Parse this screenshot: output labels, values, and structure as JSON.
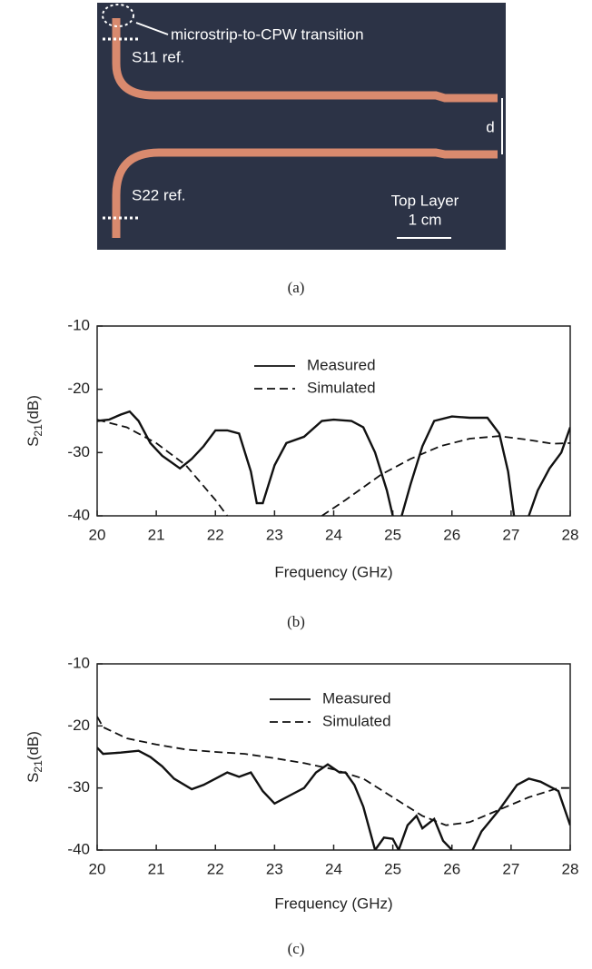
{
  "photo": {
    "annotation": "microstrip-to-CPW transition",
    "s11_label": "S11 ref.",
    "s22_label": "S22 ref.",
    "d_label": "d",
    "layer_label": "Top Layer",
    "scale_label": "1 cm",
    "caption": "(a)"
  },
  "chart_data": [
    {
      "type": "line",
      "caption": "(b)",
      "x_label": "Frequency (GHz)",
      "y_label": {
        "text": "S",
        "subscript": "21",
        "unit": "(dB)"
      },
      "xlim": [
        20,
        28
      ],
      "xticks": [
        20,
        21,
        22,
        23,
        24,
        25,
        26,
        27,
        28
      ],
      "ylim": [
        -40,
        -10
      ],
      "yticks": [
        -40,
        -30,
        -20,
        -10
      ],
      "series": [
        {
          "name": "Measured",
          "color": "#111111",
          "dash": "solid",
          "x": [
            20,
            20.2,
            20.4,
            20.55,
            20.7,
            20.9,
            21.1,
            21.4,
            21.6,
            21.8,
            22,
            22.2,
            22.4,
            22.6,
            22.7,
            22.8,
            23,
            23.2,
            23.5,
            23.8,
            24,
            24.3,
            24.5,
            24.7,
            24.9,
            25.0,
            25.1,
            25.15,
            25.3,
            25.5,
            25.7,
            26,
            26.3,
            26.6,
            26.8,
            26.95,
            27.05,
            27.2,
            27.3,
            27.45,
            27.65,
            27.85,
            28
          ],
          "values": [
            -25,
            -24.8,
            -24,
            -23.5,
            -25,
            -28.5,
            -30.5,
            -32.5,
            -31,
            -29,
            -26.5,
            -26.5,
            -27,
            -33,
            -38,
            -38,
            -32,
            -28.5,
            -27.5,
            -25,
            -24.8,
            -25,
            -26,
            -30,
            -36,
            -40,
            null,
            -40,
            -35,
            -29,
            -25,
            -24.3,
            -24.5,
            -24.5,
            -27,
            -33,
            -40,
            null,
            -40,
            -36,
            -32.5,
            -30,
            -26
          ]
        },
        {
          "name": "Simulated",
          "color": "#111111",
          "dash": "dashed",
          "x": [
            20,
            20.5,
            21,
            21.5,
            22,
            22.2,
            23,
            23.8,
            24.2,
            24.8,
            25.3,
            25.8,
            26.3,
            26.8,
            27.3,
            27.7,
            28
          ],
          "values": [
            -24.8,
            -26,
            -28.5,
            -32,
            -37.5,
            -40,
            null,
            -40,
            -37.5,
            -33.5,
            -31,
            -29,
            -27.8,
            -27.4,
            -28,
            -28.6,
            -28.5
          ]
        }
      ]
    },
    {
      "type": "line",
      "caption": "(c)",
      "x_label": "Frequency (GHz)",
      "y_label": {
        "text": "S",
        "subscript": "21",
        "unit": "(dB)"
      },
      "xlim": [
        20,
        28
      ],
      "xticks": [
        20,
        21,
        22,
        23,
        24,
        25,
        26,
        27,
        28
      ],
      "ylim": [
        -40,
        -10
      ],
      "yticks": [
        -40,
        -30,
        -20,
        -10
      ],
      "series": [
        {
          "name": "Measured",
          "color": "#111111",
          "dash": "solid",
          "x": [
            20,
            20.1,
            20.4,
            20.7,
            20.9,
            21.1,
            21.3,
            21.6,
            21.8,
            22,
            22.2,
            22.4,
            22.6,
            22.8,
            23,
            23.3,
            23.5,
            23.7,
            23.9,
            24.1,
            24.2,
            24.35,
            24.5,
            24.7,
            24.85,
            25,
            25.1,
            25.25,
            25.4,
            25.5,
            25.7,
            25.85,
            26,
            26.2,
            26.35,
            26.5,
            26.8,
            27.1,
            27.3,
            27.5,
            27.8,
            28
          ],
          "values": [
            -23.5,
            -24.5,
            -24.3,
            -24,
            -25,
            -26.5,
            -28.5,
            -30.2,
            -29.5,
            -28.5,
            -27.5,
            -28.2,
            -27.5,
            -30.5,
            -32.5,
            -31,
            -30,
            -27.5,
            -26.2,
            -27.5,
            -27.5,
            -29.5,
            -33,
            -40,
            -38,
            -38.2,
            -40,
            -36,
            -34.5,
            -36.5,
            -35,
            -38.5,
            -40,
            null,
            -40,
            -37,
            -33.5,
            -29.5,
            -28.5,
            -29,
            -30.5,
            -36
          ]
        },
        {
          "name": "Simulated",
          "color": "#111111",
          "dash": "dashed",
          "x": [
            20,
            20.1,
            20.5,
            21,
            21.5,
            22,
            22.5,
            23,
            23.5,
            24,
            24.5,
            25,
            25.5,
            25.9,
            26.3,
            26.8,
            27.3,
            27.8,
            28
          ],
          "values": [
            -18.5,
            -20.2,
            -22,
            -23,
            -23.8,
            -24.2,
            -24.5,
            -25.2,
            -26,
            -27,
            -28.5,
            -31.5,
            -34.5,
            -36,
            -35.5,
            -33.5,
            -31.5,
            -30,
            -30
          ]
        }
      ]
    }
  ]
}
